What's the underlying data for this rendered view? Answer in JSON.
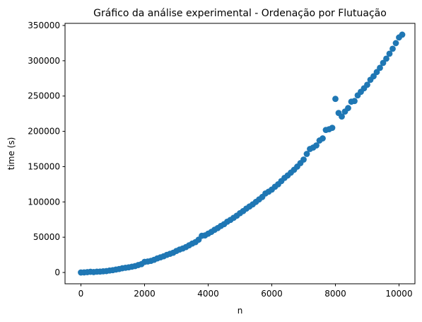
{
  "chart_data": {
    "type": "scatter",
    "title": "Gráfico da análise experimental - Ordenação por Flutuação",
    "xlabel": "n",
    "ylabel": "time (s)",
    "xlim": [
      -500,
      10500
    ],
    "ylim": [
      -16000,
      353000
    ],
    "xticks": [
      0,
      2000,
      4000,
      6000,
      8000,
      10000
    ],
    "yticks": [
      0,
      50000,
      100000,
      150000,
      200000,
      250000,
      300000,
      350000
    ],
    "grid": false,
    "legend": "none",
    "color": "#1f77b4",
    "series": [
      {
        "points": [
          [
            0,
            0
          ],
          [
            100,
            100
          ],
          [
            200,
            500
          ],
          [
            300,
            1000
          ],
          [
            400,
            600
          ],
          [
            500,
            1200
          ],
          [
            600,
            1300
          ],
          [
            700,
            1700
          ],
          [
            800,
            2000
          ],
          [
            900,
            2800
          ],
          [
            1000,
            3300
          ],
          [
            1100,
            4200
          ],
          [
            1200,
            4900
          ],
          [
            1300,
            6000
          ],
          [
            1400,
            6700
          ],
          [
            1500,
            7300
          ],
          [
            1600,
            8200
          ],
          [
            1700,
            9100
          ],
          [
            1800,
            10500
          ],
          [
            1900,
            11800
          ],
          [
            2000,
            15000
          ],
          [
            2100,
            15600
          ],
          [
            2200,
            16500
          ],
          [
            2300,
            18000
          ],
          [
            2400,
            20000
          ],
          [
            2500,
            21500
          ],
          [
            2600,
            23000
          ],
          [
            2700,
            25000
          ],
          [
            2800,
            26500
          ],
          [
            2900,
            28000
          ],
          [
            3000,
            30500
          ],
          [
            3100,
            32500
          ],
          [
            3200,
            34000
          ],
          [
            3300,
            36000
          ],
          [
            3400,
            38500
          ],
          [
            3500,
            41000
          ],
          [
            3600,
            43000
          ],
          [
            3700,
            46500
          ],
          [
            3800,
            52000
          ],
          [
            3900,
            52500
          ],
          [
            4000,
            55000
          ],
          [
            4100,
            57500
          ],
          [
            4200,
            60500
          ],
          [
            4300,
            63000
          ],
          [
            4400,
            66000
          ],
          [
            4500,
            68500
          ],
          [
            4600,
            72000
          ],
          [
            4700,
            74500
          ],
          [
            4800,
            77500
          ],
          [
            4900,
            80500
          ],
          [
            5000,
            84000
          ],
          [
            5100,
            87000
          ],
          [
            5200,
            90500
          ],
          [
            5300,
            93500
          ],
          [
            5400,
            96500
          ],
          [
            5500,
            100000
          ],
          [
            5600,
            103500
          ],
          [
            5700,
            107000
          ],
          [
            5800,
            112000
          ],
          [
            5900,
            114500
          ],
          [
            6000,
            117500
          ],
          [
            6100,
            121500
          ],
          [
            6200,
            125000
          ],
          [
            6300,
            129500
          ],
          [
            6400,
            134000
          ],
          [
            6500,
            137500
          ],
          [
            6600,
            141500
          ],
          [
            6700,
            145500
          ],
          [
            6800,
            150000
          ],
          [
            6900,
            155000
          ],
          [
            7000,
            160000
          ],
          [
            7100,
            168000
          ],
          [
            7200,
            175000
          ],
          [
            7300,
            177000
          ],
          [
            7400,
            180000
          ],
          [
            7500,
            187000
          ],
          [
            7600,
            190000
          ],
          [
            7700,
            202000
          ],
          [
            7800,
            203000
          ],
          [
            7900,
            205000
          ],
          [
            8000,
            246000
          ],
          [
            8100,
            226000
          ],
          [
            8200,
            221000
          ],
          [
            8300,
            228000
          ],
          [
            8400,
            233000
          ],
          [
            8500,
            242000
          ],
          [
            8600,
            243000
          ],
          [
            8700,
            251000
          ],
          [
            8800,
            256000
          ],
          [
            8900,
            261000
          ],
          [
            9000,
            266000
          ],
          [
            9100,
            273000
          ],
          [
            9200,
            278000
          ],
          [
            9300,
            284000
          ],
          [
            9400,
            290000
          ],
          [
            9500,
            297000
          ],
          [
            9600,
            303000
          ],
          [
            9700,
            310000
          ],
          [
            9800,
            317000
          ],
          [
            9900,
            325000
          ],
          [
            10000,
            333000
          ],
          [
            10100,
            337000
          ]
        ]
      }
    ]
  }
}
